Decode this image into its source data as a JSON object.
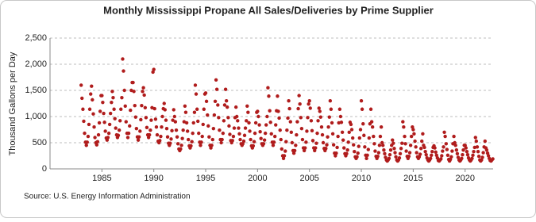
{
  "chart_data": {
    "type": "scatter",
    "title": "Monthly Mississippi Propane All Sales/Deliveries by Prime Supplier",
    "y_label": "Thousand Gallons per Day",
    "source": "Source: U.S. Energy Information Administration",
    "color": "#b01c1c",
    "grid": true,
    "xlim": [
      1980,
      2022.7
    ],
    "xticks": [
      1985,
      1990,
      1995,
      2000,
      2005,
      2010,
      2015,
      2020
    ],
    "ylim": [
      0,
      2500
    ],
    "yticks": [
      0,
      500,
      {
        "value": 1000,
        "label": "1,000"
      },
      {
        "value": 1500,
        "label": "1,500"
      },
      {
        "value": 2000,
        "label": "2,000"
      },
      {
        "value": 2500,
        "label": "2,500"
      }
    ],
    "x": [
      1983,
      1983.08,
      1983.17,
      1983.25,
      1983.33,
      1983.42,
      1983.5,
      1983.58,
      1983.67,
      1983.75,
      1983.83,
      1983.92,
      1984,
      1984.08,
      1984.17,
      1984.25,
      1984.33,
      1984.42,
      1984.5,
      1984.58,
      1984.67,
      1984.75,
      1984.83,
      1984.92,
      1985,
      1985.08,
      1985.17,
      1985.25,
      1985.33,
      1985.42,
      1985.5,
      1985.58,
      1985.67,
      1985.75,
      1985.83,
      1985.92,
      1986,
      1986.08,
      1986.17,
      1986.25,
      1986.33,
      1986.42,
      1986.5,
      1986.58,
      1986.67,
      1986.75,
      1986.83,
      1986.92,
      1987,
      1987.08,
      1987.17,
      1987.25,
      1987.33,
      1987.42,
      1987.5,
      1987.58,
      1987.67,
      1987.75,
      1987.83,
      1987.92,
      1988,
      1988.08,
      1988.17,
      1988.25,
      1988.33,
      1988.42,
      1988.5,
      1988.58,
      1988.67,
      1988.75,
      1988.83,
      1988.92,
      1989,
      1989.08,
      1989.17,
      1989.25,
      1989.33,
      1989.42,
      1989.5,
      1989.58,
      1989.67,
      1989.75,
      1989.83,
      1989.92,
      1990,
      1990.08,
      1990.17,
      1990.25,
      1990.33,
      1990.42,
      1990.5,
      1990.58,
      1990.67,
      1990.75,
      1990.83,
      1990.92,
      1991,
      1991.08,
      1991.17,
      1991.25,
      1991.33,
      1991.42,
      1991.5,
      1991.58,
      1991.67,
      1991.75,
      1991.83,
      1991.92,
      1992,
      1992.08,
      1992.17,
      1992.25,
      1992.33,
      1992.42,
      1992.5,
      1992.58,
      1992.67,
      1992.75,
      1992.83,
      1992.92,
      1993,
      1993.08,
      1993.17,
      1993.25,
      1993.33,
      1993.42,
      1993.5,
      1993.58,
      1993.67,
      1993.75,
      1993.83,
      1993.92,
      1994,
      1994.08,
      1994.17,
      1994.25,
      1994.33,
      1994.42,
      1994.5,
      1994.58,
      1994.67,
      1994.75,
      1994.83,
      1994.92,
      1995,
      1995.08,
      1995.17,
      1995.25,
      1995.33,
      1995.42,
      1995.5,
      1995.58,
      1995.67,
      1995.75,
      1995.83,
      1995.92,
      1996,
      1996.08,
      1996.17,
      1996.25,
      1996.33,
      1996.42,
      1996.5,
      1996.58,
      1996.67,
      1996.75,
      1996.83,
      1996.92,
      1997,
      1997.08,
      1997.17,
      1997.25,
      1997.33,
      1997.42,
      1997.5,
      1997.58,
      1997.67,
      1997.75,
      1997.83,
      1997.92,
      1998,
      1998.08,
      1998.17,
      1998.25,
      1998.33,
      1998.42,
      1998.5,
      1998.58,
      1998.67,
      1998.75,
      1998.83,
      1998.92,
      1999,
      1999.08,
      1999.17,
      1999.25,
      1999.33,
      1999.42,
      1999.5,
      1999.58,
      1999.67,
      1999.75,
      1999.83,
      1999.92,
      2000,
      2000.08,
      2000.17,
      2000.25,
      2000.33,
      2000.42,
      2000.5,
      2000.58,
      2000.67,
      2000.75,
      2000.83,
      2000.92,
      2001,
      2001.08,
      2001.17,
      2001.25,
      2001.33,
      2001.42,
      2001.5,
      2001.58,
      2001.67,
      2001.75,
      2001.83,
      2001.92,
      2002,
      2002.08,
      2002.17,
      2002.25,
      2002.33,
      2002.42,
      2002.5,
      2002.58,
      2002.67,
      2002.75,
      2002.83,
      2002.92,
      2003,
      2003.08,
      2003.17,
      2003.25,
      2003.33,
      2003.42,
      2003.5,
      2003.58,
      2003.67,
      2003.75,
      2003.83,
      2003.92,
      2004,
      2004.08,
      2004.17,
      2004.25,
      2004.33,
      2004.42,
      2004.5,
      2004.58,
      2004.67,
      2004.75,
      2004.83,
      2004.92,
      2005,
      2005.08,
      2005.17,
      2005.25,
      2005.33,
      2005.42,
      2005.5,
      2005.58,
      2005.67,
      2005.75,
      2005.83,
      2005.92,
      2006,
      2006.08,
      2006.17,
      2006.25,
      2006.33,
      2006.42,
      2006.5,
      2006.58,
      2006.67,
      2006.75,
      2006.83,
      2006.92,
      2007,
      2007.08,
      2007.17,
      2007.25,
      2007.33,
      2007.42,
      2007.5,
      2007.58,
      2007.67,
      2007.75,
      2007.83,
      2007.92,
      2008,
      2008.08,
      2008.17,
      2008.25,
      2008.33,
      2008.42,
      2008.5,
      2008.58,
      2008.67,
      2008.75,
      2008.83,
      2008.92,
      2009,
      2009.08,
      2009.17,
      2009.25,
      2009.33,
      2009.42,
      2009.5,
      2009.58,
      2009.67,
      2009.75,
      2009.83,
      2009.92,
      2010,
      2010.08,
      2010.17,
      2010.25,
      2010.33,
      2010.42,
      2010.5,
      2010.58,
      2010.67,
      2010.75,
      2010.83,
      2010.92,
      2011,
      2011.08,
      2011.17,
      2011.25,
      2011.33,
      2011.42,
      2011.5,
      2011.58,
      2011.67,
      2011.75,
      2011.83,
      2011.92,
      2012,
      2012.08,
      2012.17,
      2012.25,
      2012.33,
      2012.42,
      2012.5,
      2012.58,
      2012.67,
      2012.75,
      2012.83,
      2012.92,
      2013,
      2013.08,
      2013.17,
      2013.25,
      2013.33,
      2013.42,
      2013.5,
      2013.58,
      2013.67,
      2013.75,
      2013.83,
      2013.92,
      2014,
      2014.08,
      2014.17,
      2014.25,
      2014.33,
      2014.42,
      2014.5,
      2014.58,
      2014.67,
      2014.75,
      2014.83,
      2014.92,
      2015,
      2015.08,
      2015.17,
      2015.25,
      2015.33,
      2015.42,
      2015.5,
      2015.58,
      2015.67,
      2015.75,
      2015.83,
      2015.92,
      2016,
      2016.08,
      2016.17,
      2016.25,
      2016.33,
      2016.42,
      2016.5,
      2016.58,
      2016.67,
      2016.75,
      2016.83,
      2016.92,
      2017,
      2017.08,
      2017.17,
      2017.25,
      2017.33,
      2017.42,
      2017.5,
      2017.58,
      2017.67,
      2017.75,
      2017.83,
      2017.92,
      2018,
      2018.08,
      2018.17,
      2018.25,
      2018.33,
      2018.42,
      2018.5,
      2018.58,
      2018.67,
      2018.75,
      2018.83,
      2018.92,
      2019,
      2019.08,
      2019.17,
      2019.25,
      2019.33,
      2019.42,
      2019.5,
      2019.58,
      2019.67,
      2019.75,
      2019.83,
      2019.92,
      2020,
      2020.08,
      2020.17,
      2020.25,
      2020.33,
      2020.42,
      2020.5,
      2020.58,
      2020.67,
      2020.75,
      2020.83,
      2020.92,
      2021,
      2021.08,
      2021.17,
      2021.25,
      2021.33,
      2021.42,
      2021.5,
      2021.58,
      2021.67,
      2021.75,
      2021.83,
      2021.92,
      2022,
      2022.08,
      2022.17,
      2022.25,
      2022.33,
      2022.42,
      2022.5,
      2022.58,
      2022.67
    ],
    "values": [
      1600,
      1350,
      1140,
      910,
      680,
      510,
      450,
      510,
      620,
      850,
      1140,
      1430,
      1580,
      1320,
      1050,
      800,
      600,
      500,
      460,
      520,
      650,
      880,
      1100,
      1400,
      1400,
      1270,
      1060,
      890,
      720,
      590,
      550,
      600,
      680,
      850,
      1060,
      1270,
      1480,
      1360,
      1140,
      960,
      780,
      650,
      600,
      640,
      740,
      920,
      1140,
      1360,
      2100,
      1870,
      1500,
      1200,
      900,
      680,
      600,
      680,
      820,
      1120,
      1500,
      1650,
      1650,
      1480,
      1210,
      990,
      770,
      610,
      550,
      610,
      720,
      940,
      1210,
      1480,
      1550,
      1410,
      1170,
      980,
      790,
      650,
      600,
      650,
      740,
      930,
      1170,
      1850,
      1900,
      1150,
      950,
      800,
      650,
      530,
      500,
      540,
      620,
      800,
      1000,
      1150,
      1250,
      1130,
      930,
      770,
      610,
      490,
      450,
      490,
      570,
      730,
      930,
      1130,
      1000,
      900,
      740,
      610,
      480,
      380,
      350,
      380,
      450,
      580,
      740,
      900,
      1200,
      1080,
      880,
      720,
      560,
      440,
      400,
      440,
      520,
      680,
      880,
      1080,
      1600,
      1430,
      1140,
      910,
      680,
      510,
      450,
      510,
      620,
      850,
      1140,
      1430,
      1450,
      1290,
      1030,
      820,
      610,
      450,
      400,
      450,
      560,
      770,
      1030,
      1290,
      1700,
      1520,
      1220,
      980,
      740,
      560,
      500,
      560,
      680,
      920,
      1220,
      1520,
      1300,
      1180,
      980,
      820,
      660,
      540,
      500,
      540,
      620,
      780,
      980,
      1180,
      1000,
      920,
      780,
      670,
      560,
      480,
      450,
      480,
      530,
      640,
      780,
      920,
      1200,
      1080,
      880,
      720,
      560,
      440,
      400,
      440,
      520,
      680,
      880,
      1080,
      1100,
      1000,
      840,
      710,
      580,
      480,
      450,
      480,
      550,
      680,
      840,
      1000,
      1550,
      1390,
      1110,
      890,
      670,
      510,
      450,
      510,
      620,
      840,
      1110,
      1390,
      1100,
      970,
      740,
      560,
      380,
      250,
      200,
      250,
      340,
      520,
      740,
      970,
      1300,
      1150,
      900,
      700,
      500,
      350,
      300,
      350,
      450,
      650,
      900,
      1150,
      1400,
      1240,
      980,
      770,
      560,
      400,
      350,
      400,
      510,
      720,
      980,
      1240,
      1300,
      1160,
      920,
      730,
      540,
      400,
      350,
      400,
      490,
      680,
      920,
      1160,
      1100,
      990,
      800,
      650,
      500,
      390,
      350,
      390,
      460,
      610,
      800,
      990,
      1300,
      1140,
      880,
      670,
      460,
      300,
      250,
      300,
      410,
      620,
      880,
      1140,
      1000,
      890,
      700,
      550,
      400,
      290,
      250,
      290,
      360,
      510,
      700,
      890,
      850,
      750,
      590,
      460,
      330,
      230,
      200,
      230,
      300,
      430,
      590,
      750,
      1300,
      1140,
      860,
      640,
      420,
      260,
      200,
      260,
      370,
      590,
      860,
      1140,
      900,
      800,
      620,
      480,
      340,
      240,
      200,
      240,
      310,
      450,
      620,
      800,
      500,
      450,
      360,
      290,
      220,
      170,
      150,
      170,
      200,
      270,
      360,
      450,
      550,
      490,
      390,
      310,
      230,
      170,
      150,
      170,
      210,
      290,
      390,
      490,
      900,
      800,
      620,
      480,
      340,
      240,
      200,
      240,
      310,
      450,
      620,
      800,
      750,
      670,
      530,
      420,
      310,
      230,
      200,
      230,
      280,
      390,
      530,
      670,
      450,
      410,
      330,
      270,
      210,
      170,
      150,
      170,
      200,
      260,
      330,
      410,
      440,
      400,
      320,
      260,
      210,
      160,
      150,
      170,
      190,
      250,
      340,
      420,
      700,
      620,
      480,
      370,
      260,
      180,
      150,
      180,
      230,
      340,
      480,
      620,
      500,
      450,
      360,
      290,
      220,
      170,
      150,
      170,
      200,
      270,
      360,
      450,
      450,
      400,
      330,
      270,
      210,
      170,
      150,
      170,
      200,
      260,
      330,
      410,
      600,
      530,
      420,
      330,
      240,
      170,
      150,
      170,
      220,
      310,
      420,
      530,
      400,
      360,
      300,
      250,
      200,
      160,
      150,
      170,
      190
    ]
  }
}
